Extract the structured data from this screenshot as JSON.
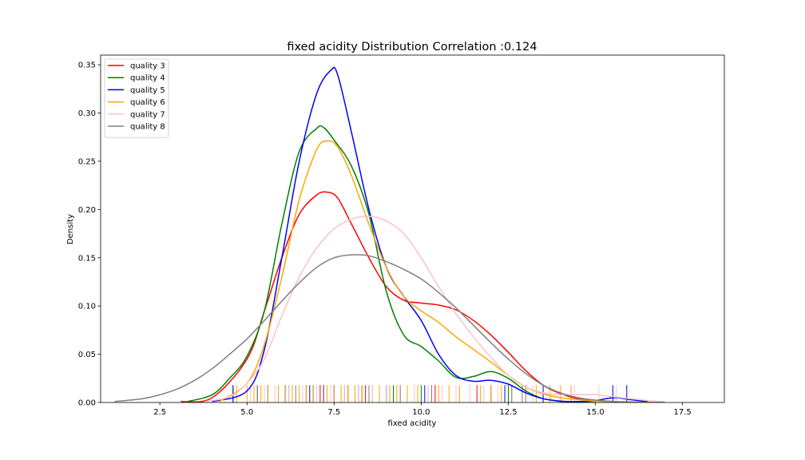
{
  "chart_data": {
    "type": "line",
    "title": "fixed acidity Distribution Correlation :0.124",
    "xlabel": "fixed acidity",
    "ylabel": "Density",
    "xlim": [
      0.8,
      18.7
    ],
    "ylim": [
      0,
      0.36
    ],
    "x_ticks": [
      2.5,
      5.0,
      7.5,
      10.0,
      12.5,
      15.0,
      17.5
    ],
    "x_tick_labels": [
      "2.5",
      "5.0",
      "7.5",
      "10.0",
      "12.5",
      "15.0",
      "17.5"
    ],
    "y_ticks": [
      0.0,
      0.05,
      0.1,
      0.15,
      0.2,
      0.25,
      0.3,
      0.35
    ],
    "y_tick_labels": [
      "0.00",
      "0.05",
      "0.10",
      "0.15",
      "0.20",
      "0.25",
      "0.30",
      "0.35"
    ],
    "grid": false,
    "legend_position": "top-left",
    "rug_height": 0.018,
    "series": [
      {
        "name": "quality 3",
        "color": "#ff0000",
        "x": [
          3.1,
          4.0,
          5.0,
          5.5,
          6.0,
          6.5,
          7.0,
          7.3,
          7.6,
          8.0,
          8.5,
          9.0,
          9.5,
          10.0,
          10.5,
          11.0,
          11.5,
          12.0,
          12.5,
          13.0,
          13.5,
          14.0,
          14.5,
          15.0,
          15.5,
          16.0
        ],
        "y": [
          0.001,
          0.005,
          0.045,
          0.095,
          0.15,
          0.195,
          0.215,
          0.218,
          0.212,
          0.185,
          0.15,
          0.12,
          0.106,
          0.103,
          0.101,
          0.096,
          0.085,
          0.07,
          0.052,
          0.033,
          0.018,
          0.009,
          0.004,
          0.002,
          0.0008,
          0.0002
        ]
      },
      {
        "name": "quality 4",
        "color": "#008000",
        "x": [
          3.3,
          4.0,
          4.5,
          5.0,
          5.5,
          6.0,
          6.5,
          7.0,
          7.2,
          7.5,
          8.0,
          8.5,
          9.0,
          9.5,
          10.0,
          10.5,
          11.0,
          11.5,
          12.0,
          12.5,
          13.0,
          13.5,
          14.0,
          14.5,
          15.0
        ],
        "y": [
          0.001,
          0.008,
          0.025,
          0.048,
          0.095,
          0.185,
          0.26,
          0.284,
          0.285,
          0.272,
          0.245,
          0.195,
          0.115,
          0.07,
          0.058,
          0.043,
          0.026,
          0.027,
          0.032,
          0.025,
          0.012,
          0.004,
          0.0012,
          0.0003,
          0.0001
        ]
      },
      {
        "name": "quality 5",
        "color": "#0000ff",
        "x": [
          4.0,
          5.0,
          5.5,
          6.0,
          6.5,
          7.0,
          7.4,
          7.6,
          8.0,
          8.5,
          9.0,
          9.5,
          10.0,
          10.5,
          11.0,
          11.5,
          12.0,
          12.5,
          13.0,
          13.5,
          14.0,
          14.5,
          15.0,
          15.3,
          15.6,
          16.0,
          16.5
        ],
        "y": [
          0.001,
          0.012,
          0.055,
          0.15,
          0.25,
          0.32,
          0.344,
          0.34,
          0.28,
          0.2,
          0.14,
          0.11,
          0.085,
          0.05,
          0.028,
          0.022,
          0.023,
          0.019,
          0.01,
          0.004,
          0.0015,
          0.001,
          0.002,
          0.004,
          0.005,
          0.003,
          0.0008
        ]
      },
      {
        "name": "quality 6",
        "color": "#ffa500",
        "x": [
          4.2,
          5.0,
          5.5,
          6.0,
          6.5,
          7.0,
          7.3,
          7.6,
          8.0,
          8.5,
          9.0,
          9.5,
          10.0,
          10.5,
          11.0,
          11.5,
          12.0,
          12.5,
          13.0,
          13.5,
          14.0,
          14.5,
          15.0,
          15.5,
          16.0
        ],
        "y": [
          0.001,
          0.02,
          0.06,
          0.13,
          0.21,
          0.262,
          0.271,
          0.265,
          0.235,
          0.185,
          0.14,
          0.11,
          0.095,
          0.083,
          0.068,
          0.055,
          0.042,
          0.028,
          0.016,
          0.009,
          0.005,
          0.003,
          0.0015,
          0.0008,
          0.0003
        ]
      },
      {
        "name": "quality 7",
        "color": "#ffc0cb",
        "x": [
          3.8,
          4.5,
          5.0,
          5.5,
          6.0,
          6.5,
          7.0,
          7.5,
          8.0,
          8.5,
          9.0,
          9.5,
          10.0,
          10.5,
          11.0,
          11.5,
          12.0,
          12.5,
          13.0,
          13.5,
          14.0,
          14.5,
          15.0,
          15.5,
          16.0,
          16.5,
          17.0
        ],
        "y": [
          0.001,
          0.006,
          0.02,
          0.045,
          0.09,
          0.13,
          0.16,
          0.18,
          0.19,
          0.193,
          0.188,
          0.175,
          0.15,
          0.12,
          0.092,
          0.068,
          0.047,
          0.028,
          0.016,
          0.01,
          0.008,
          0.008,
          0.008,
          0.006,
          0.004,
          0.002,
          0.0005
        ]
      },
      {
        "name": "quality 8",
        "color": "#808080",
        "x": [
          1.2,
          2.0,
          2.5,
          3.0,
          3.5,
          4.0,
          4.5,
          5.0,
          5.5,
          6.0,
          6.5,
          7.0,
          7.5,
          8.0,
          8.5,
          9.0,
          9.5,
          10.0,
          10.5,
          11.0,
          11.5,
          12.0,
          12.5,
          13.0,
          13.5,
          14.0,
          14.5,
          15.0,
          15.5,
          16.0,
          16.5,
          17.0
        ],
        "y": [
          0.001,
          0.004,
          0.008,
          0.014,
          0.023,
          0.035,
          0.05,
          0.066,
          0.085,
          0.105,
          0.124,
          0.14,
          0.15,
          0.153,
          0.152,
          0.146,
          0.138,
          0.128,
          0.114,
          0.098,
          0.08,
          0.062,
          0.045,
          0.03,
          0.018,
          0.01,
          0.005,
          0.0025,
          0.0012,
          0.0005,
          0.0002,
          0.0001
        ]
      }
    ],
    "rug": [
      {
        "color": "#ff0000",
        "values": [
          6.7,
          7.1,
          7.4,
          7.9,
          8.4,
          10.4,
          11.6,
          12.0
        ]
      },
      {
        "color": "#008000",
        "values": [
          4.6,
          5.3,
          6.2,
          6.9,
          7.2,
          7.8,
          8.3,
          9.2,
          10.0,
          12.5
        ]
      },
      {
        "color": "#0000ff",
        "values": [
          4.6,
          5.6,
          6.1,
          6.8,
          7.2,
          7.5,
          8.2,
          9.0,
          10.1,
          11.4,
          12.4,
          13.0,
          13.5,
          15.5,
          15.9
        ]
      },
      {
        "color": "#ffa500",
        "values": [
          4.7,
          5.0,
          5.2,
          5.4,
          5.6,
          5.9,
          6.1,
          6.3,
          6.5,
          6.7,
          6.9,
          7.0,
          7.3,
          7.5,
          7.7,
          7.9,
          8.1,
          8.3,
          8.6,
          8.8,
          9.1,
          9.3,
          9.6,
          9.9,
          10.2,
          10.5,
          10.8,
          11.1,
          11.4,
          11.7,
          12.0,
          12.3,
          12.6,
          13.0,
          13.3,
          13.7,
          14.0,
          14.3
        ]
      },
      {
        "color": "#ffc0cb",
        "values": [
          5.1,
          5.5,
          5.8,
          6.2,
          6.6,
          7.0,
          7.4,
          7.8,
          8.2,
          8.6,
          9.0,
          9.4,
          9.8,
          10.2,
          10.6,
          11.0,
          11.4,
          11.8,
          12.2,
          12.6,
          13.2,
          14.4,
          15.1,
          15.6
        ]
      },
      {
        "color": "#808080",
        "values": [
          5.3,
          6.4,
          7.2,
          8.5,
          9.4,
          10.3,
          12.6,
          12.9
        ]
      }
    ]
  }
}
